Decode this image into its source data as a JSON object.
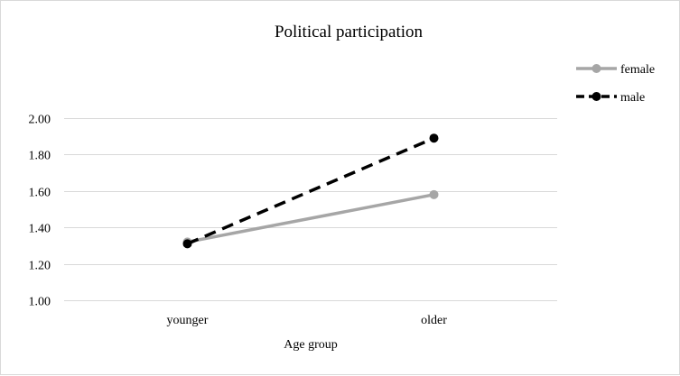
{
  "chart_data": {
    "type": "line",
    "title": "Political participation",
    "xlabel": "Age group",
    "ylabel": "",
    "categories": [
      "younger",
      "older"
    ],
    "ylim": [
      1.0,
      2.0
    ],
    "yticks": [
      "1.00",
      "1.20",
      "1.40",
      "1.60",
      "1.80",
      "2.00"
    ],
    "ytick_values": [
      1.0,
      1.2,
      1.4,
      1.6,
      1.8,
      2.0
    ],
    "grid": true,
    "legend_position": "top-right",
    "series": [
      {
        "name": "female",
        "values": [
          1.32,
          1.58
        ],
        "color": "#a6a6a6",
        "marker_color": "#a6a6a6",
        "line_style": "solid"
      },
      {
        "name": "male",
        "values": [
          1.31,
          1.89
        ],
        "color": "#000000",
        "marker_color": "#000000",
        "line_style": "dashed"
      }
    ]
  }
}
